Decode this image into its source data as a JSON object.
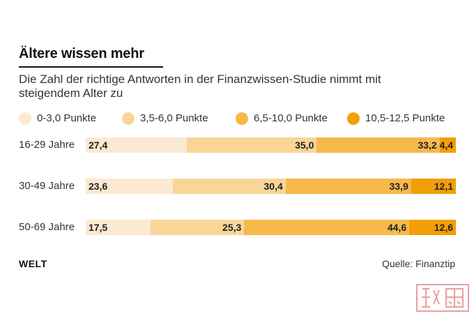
{
  "header": {
    "title": "Ältere wissen mehr",
    "subtitle": "Die Zahl der richtige Antworten in der Finanzwissen-Studie nimmt mit steigendem Alter zu"
  },
  "footer": {
    "brand": "WELT",
    "source": "Quelle: Finanztip"
  },
  "colors": [
    "#fbe9d2",
    "#f9d598",
    "#f6b94a",
    "#f29f05"
  ],
  "chart_data": {
    "type": "bar",
    "orientation": "horizontal",
    "stacked": true,
    "title": "Ältere wissen mehr",
    "subtitle": "Die Zahl der richtige Antworten in der Finanzwissen-Studie nimmt mit steigendem Alter zu",
    "categories": [
      "16-29 Jahre",
      "30-49 Jahre",
      "50-69 Jahre"
    ],
    "series": [
      {
        "name": "0-3,0 Punkte",
        "values": [
          27.4,
          23.6,
          17.5
        ],
        "labels": [
          "27,4",
          "23,6",
          "17,5"
        ]
      },
      {
        "name": "3,5-6,0 Punkte",
        "values": [
          35.0,
          30.4,
          25.3
        ],
        "labels": [
          "35,0",
          "30,4",
          "25,3"
        ]
      },
      {
        "name": "6,5-10,0 Punkte",
        "values": [
          33.2,
          33.9,
          44.6
        ],
        "labels": [
          "33,2",
          "33,9",
          "44,6"
        ]
      },
      {
        "name": "10,5-12,5 Punkte",
        "values": [
          4.4,
          12.1,
          12.6
        ],
        "labels": [
          "4,4",
          "12,1",
          "12,6"
        ]
      }
    ],
    "legend_position": "top",
    "xlim": [
      0,
      100
    ],
    "grid": false,
    "source": "Quelle: Finanztip"
  }
}
